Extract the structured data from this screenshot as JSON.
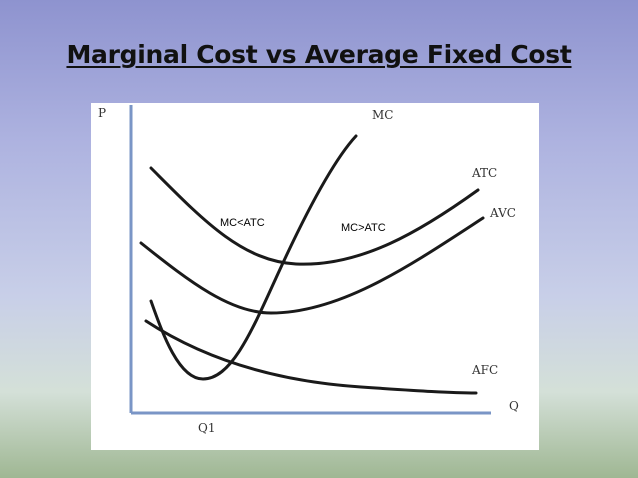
{
  "slide": {
    "title": "Marginal Cost vs Average Fixed Cost"
  },
  "diagram": {
    "axes": {
      "y_label": "P",
      "x_label": "Q",
      "x_tick": "Q1"
    },
    "curves": {
      "mc": "MC",
      "atc": "ATC",
      "avc": "AVC",
      "afc": "AFC"
    },
    "annotations": {
      "left_region": "MC<ATC",
      "right_region": "MC>ATC"
    },
    "colors": {
      "axis": "#7a95c6",
      "curve": "#1a1a1a"
    }
  }
}
